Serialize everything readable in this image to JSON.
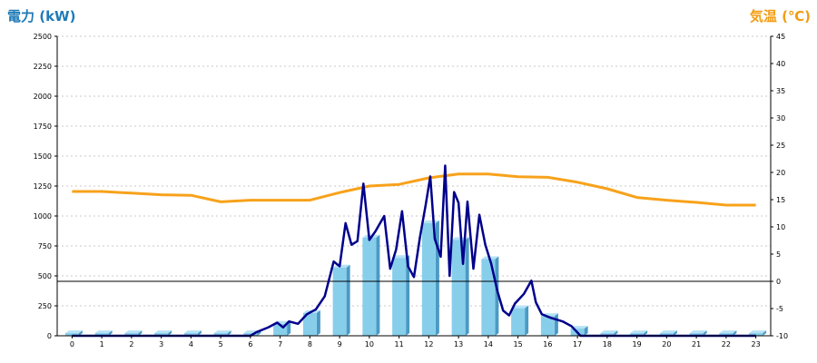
{
  "chart_data": {
    "type": "bar+line",
    "x_categories": [
      "0",
      "1",
      "2",
      "3",
      "4",
      "5",
      "6",
      "7",
      "8",
      "9",
      "10",
      "11",
      "12",
      "13",
      "14",
      "15",
      "16",
      "17",
      "18",
      "19",
      "20",
      "21",
      "22",
      "23"
    ],
    "left_axis": {
      "label": "電力 (kW)",
      "color": "#1f7ab8",
      "ylim": [
        0,
        2500
      ],
      "ticks": [
        0,
        250,
        500,
        750,
        1000,
        1250,
        1500,
        1750,
        2000,
        2250,
        2500
      ]
    },
    "right_axis": {
      "label": "気温 (℃)",
      "color": "#f39c12",
      "ylim": [
        -10,
        45
      ],
      "ticks": [
        -10,
        -5,
        0,
        5,
        10,
        15,
        20,
        25,
        30,
        35,
        40,
        45
      ]
    },
    "grid": true,
    "bars": {
      "color": "#87ceeb",
      "values": [
        22,
        22,
        22,
        22,
        22,
        22,
        22,
        100,
        190,
        570,
        820,
        650,
        940,
        800,
        640,
        230,
        165,
        60,
        22,
        22,
        22,
        22,
        22,
        22
      ]
    },
    "power_line": {
      "color": "#00008b",
      "points": [
        [
          0,
          0
        ],
        [
          6.0,
          0
        ],
        [
          6.2,
          30
        ],
        [
          6.6,
          70
        ],
        [
          6.9,
          110
        ],
        [
          7.1,
          70
        ],
        [
          7.3,
          120
        ],
        [
          7.6,
          100
        ],
        [
          7.9,
          180
        ],
        [
          8.2,
          220
        ],
        [
          8.5,
          330
        ],
        [
          8.8,
          620
        ],
        [
          9.0,
          580
        ],
        [
          9.2,
          940
        ],
        [
          9.4,
          760
        ],
        [
          9.6,
          790
        ],
        [
          9.8,
          1270
        ],
        [
          10.0,
          800
        ],
        [
          10.2,
          870
        ],
        [
          10.5,
          1000
        ],
        [
          10.7,
          560
        ],
        [
          10.9,
          720
        ],
        [
          11.1,
          1040
        ],
        [
          11.3,
          580
        ],
        [
          11.5,
          490
        ],
        [
          11.7,
          820
        ],
        [
          11.9,
          1100
        ],
        [
          12.05,
          1330
        ],
        [
          12.2,
          810
        ],
        [
          12.4,
          660
        ],
        [
          12.55,
          1420
        ],
        [
          12.7,
          500
        ],
        [
          12.85,
          1200
        ],
        [
          13.0,
          1110
        ],
        [
          13.15,
          600
        ],
        [
          13.3,
          1120
        ],
        [
          13.5,
          560
        ],
        [
          13.7,
          1010
        ],
        [
          13.9,
          760
        ],
        [
          14.1,
          600
        ],
        [
          14.3,
          380
        ],
        [
          14.5,
          210
        ],
        [
          14.7,
          170
        ],
        [
          14.9,
          270
        ],
        [
          15.2,
          350
        ],
        [
          15.45,
          460
        ],
        [
          15.6,
          280
        ],
        [
          15.8,
          180
        ],
        [
          16.1,
          150
        ],
        [
          16.5,
          120
        ],
        [
          16.8,
          80
        ],
        [
          17.1,
          0
        ],
        [
          23.0,
          0
        ]
      ]
    },
    "temperature_line": {
      "color": "#f7a21b",
      "values": [
        16.5,
        16.5,
        16.2,
        15.9,
        15.8,
        14.6,
        14.9,
        14.9,
        14.9,
        16.3,
        17.5,
        17.8,
        19.0,
        19.7,
        19.7,
        19.2,
        19.1,
        18.2,
        17.0,
        15.4,
        14.9,
        14.5,
        14.0,
        14.0
      ]
    },
    "reference_line_temperature": 0
  }
}
